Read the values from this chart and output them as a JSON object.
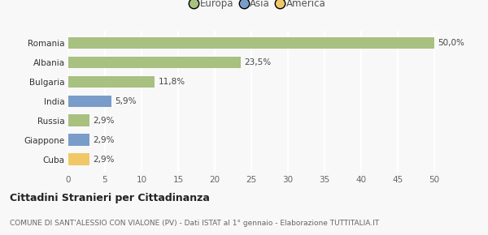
{
  "categories": [
    "Cuba",
    "Giappone",
    "Russia",
    "India",
    "Bulgaria",
    "Albania",
    "Romania"
  ],
  "values": [
    2.9,
    2.9,
    2.9,
    5.9,
    11.8,
    23.5,
    50.0
  ],
  "labels": [
    "2,9%",
    "2,9%",
    "2,9%",
    "5,9%",
    "11,8%",
    "23,5%",
    "50,0%"
  ],
  "colors": [
    "#f0c868",
    "#7a9cc8",
    "#a8c080",
    "#7a9cc8",
    "#a8c080",
    "#a8c080",
    "#a8c080"
  ],
  "legend_labels": [
    "Europa",
    "Asia",
    "America"
  ],
  "legend_colors": [
    "#a8c080",
    "#7a9cc8",
    "#f0c868"
  ],
  "xlim": [
    0,
    52
  ],
  "xticks": [
    0,
    5,
    10,
    15,
    20,
    25,
    30,
    35,
    40,
    45,
    50
  ],
  "title_bold": "Cittadini Stranieri per Cittadinanza",
  "subtitle": "COMUNE DI SANT'ALESSIO CON VIALONE (PV) - Dati ISTAT al 1° gennaio - Elaborazione TUTTITALIA.IT",
  "bg_color": "#f8f8f8",
  "grid_color": "#ffffff",
  "bar_height": 0.6
}
